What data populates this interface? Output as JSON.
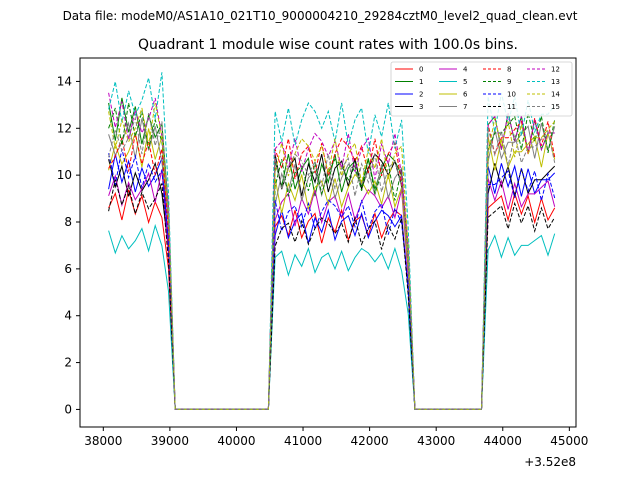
{
  "suptitle": "Data file: modeM0/AS1A10_021T10_9000004210_29284cztM0_level2_quad_clean.evt",
  "chart_data": {
    "type": "line",
    "title": "Quadrant 1 module wise count rates with 100.0s bins.",
    "xlabel": "",
    "ylabel": "",
    "x_offset_label": "+3.52e8",
    "xlim": [
      37650,
      45100
    ],
    "ylim": [
      -0.75,
      15.0
    ],
    "x_ticks": [
      38000,
      39000,
      40000,
      41000,
      42000,
      43000,
      44000,
      45000
    ],
    "x_tick_labels": [
      "38000",
      "39000",
      "40000",
      "41000",
      "42000",
      "43000",
      "44000",
      "45000"
    ],
    "y_ticks": [
      0,
      2,
      4,
      6,
      8,
      10,
      12,
      14
    ],
    "y_tick_labels": [
      "0",
      "2",
      "4",
      "6",
      "8",
      "10",
      "12",
      "14"
    ],
    "legend_position": "top-right",
    "legend_columns": 4,
    "shape": {
      "segments": [
        {
          "x": [
            38080,
            38180,
            38280,
            38380,
            38480,
            38580,
            38680,
            38780,
            38880
          ],
          "pattern": [
            0.0,
            0.12,
            -0.1,
            0.15,
            -0.05,
            0.1,
            -0.12,
            0.05,
            -0.08
          ]
        },
        {
          "x": [
            40580,
            40680,
            40780,
            40880,
            40980,
            41080,
            41180,
            41280,
            41380,
            41480,
            41580,
            41680,
            41780,
            41880,
            41980,
            42080,
            42180,
            42280,
            42380,
            42480
          ],
          "pattern": [
            0.0,
            0.1,
            -0.08,
            0.15,
            -0.1,
            0.05,
            0.12,
            -0.15,
            0.08,
            -0.05,
            0.15,
            -0.12,
            0.05,
            0.1,
            -0.08,
            0.12,
            -0.1,
            0.05,
            0.15,
            0.1
          ]
        },
        {
          "x": [
            43780,
            43880,
            43980,
            44080,
            44180,
            44280,
            44380,
            44480,
            44580,
            44680,
            44780
          ],
          "pattern": [
            0.0,
            0.05,
            0.1,
            -0.1,
            0.12,
            -0.05,
            0.1,
            -0.12,
            0.08,
            -0.1,
            0.0
          ]
        }
      ],
      "gaps": [
        {
          "x": [
            39080,
            40480
          ],
          "value": 0.0
        },
        {
          "x": [
            42680,
            43680
          ],
          "value": 0.0
        }
      ],
      "entry_factor": {
        "gap1_first": 0.7,
        "gap2_first": 0.65
      }
    },
    "series": [
      {
        "name": "0",
        "color": "#ff0000",
        "dash": "solid",
        "levels": [
          8.6,
          7.8,
          8.6
        ]
      },
      {
        "name": "1",
        "color": "#008000",
        "dash": "solid",
        "levels": [
          12.2,
          10.0,
          11.8
        ]
      },
      {
        "name": "2",
        "color": "#0000ff",
        "dash": "solid",
        "levels": [
          10.0,
          7.8,
          9.8
        ]
      },
      {
        "name": "3",
        "color": "#000000",
        "dash": "solid",
        "levels": [
          9.8,
          10.0,
          9.8
        ]
      },
      {
        "name": "4",
        "color": "#bf00bf",
        "dash": "solid",
        "levels": [
          9.4,
          8.6,
          9.2
        ]
      },
      {
        "name": "5",
        "color": "#00bfbf",
        "dash": "solid",
        "levels": [
          7.2,
          6.3,
          7.0
        ]
      },
      {
        "name": "6",
        "color": "#bfbf00",
        "dash": "solid",
        "levels": [
          11.0,
          9.2,
          11.0
        ]
      },
      {
        "name": "7",
        "color": "#808080",
        "dash": "solid",
        "levels": [
          11.4,
          9.6,
          11.4
        ]
      },
      {
        "name": "8",
        "color": "#ff0000",
        "dash": "dashed",
        "levels": [
          10.8,
          10.6,
          11.6
        ]
      },
      {
        "name": "9",
        "color": "#008000",
        "dash": "dashed",
        "levels": [
          12.0,
          9.8,
          11.8
        ]
      },
      {
        "name": "10",
        "color": "#0000ff",
        "dash": "dashed",
        "levels": [
          10.2,
          8.2,
          9.6
        ]
      },
      {
        "name": "11",
        "color": "#000000",
        "dash": "dashed",
        "levels": [
          9.0,
          7.5,
          8.2
        ]
      },
      {
        "name": "12",
        "color": "#bf00bf",
        "dash": "dashed",
        "levels": [
          12.4,
          10.8,
          11.8
        ]
      },
      {
        "name": "13",
        "color": "#00bfbf",
        "dash": "dashed",
        "levels": [
          13.2,
          12.0,
          12.6
        ]
      },
      {
        "name": "14",
        "color": "#bfbf00",
        "dash": "dashed",
        "levels": [
          12.0,
          10.6,
          11.6
        ]
      },
      {
        "name": "15",
        "color": "#808080",
        "dash": "dashed",
        "levels": [
          11.6,
          10.0,
          11.2
        ]
      }
    ]
  }
}
